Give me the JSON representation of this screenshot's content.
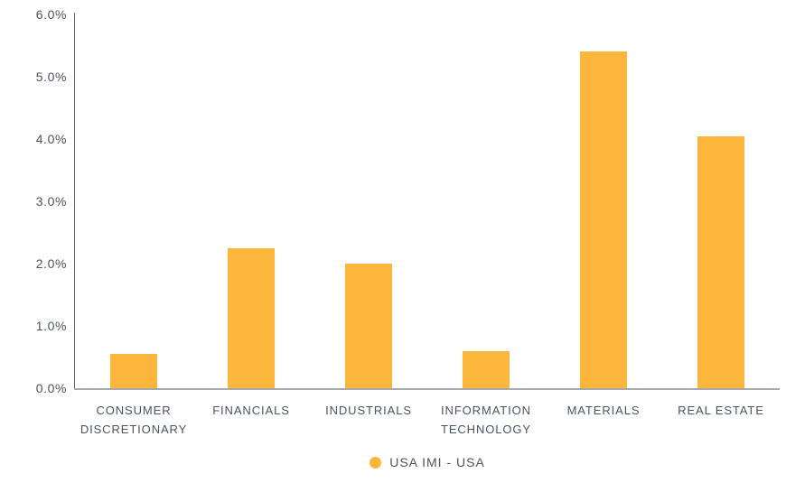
{
  "chart_data": {
    "type": "bar",
    "title": "",
    "categories": [
      "CONSUMER DISCRETIONARY",
      "FINANCIALS",
      "INDUSTRIALS",
      "INFORMATION TECHNOLOGY",
      "MATERIALS",
      "REAL ESTATE"
    ],
    "series": [
      {
        "name": "USA IMI - USA",
        "values": [
          0.55,
          2.25,
          2.0,
          0.6,
          5.4,
          4.05
        ]
      }
    ],
    "value_unit": "%",
    "xlabel": "",
    "ylabel": "",
    "ylim": [
      0.0,
      6.0
    ],
    "ytick_step": 1.0,
    "ytick_labels": [
      "0.0%",
      "1.0%",
      "2.0%",
      "3.0%",
      "4.0%",
      "5.0%",
      "6.0%"
    ],
    "grid": false,
    "legend_position": "bottom-center",
    "colors": {
      "bar": "#FCB63C",
      "text": "#4A5360",
      "y_axis_line": "#5B6470",
      "x_axis_line": "#A7A9AC",
      "background": "#FFFFFF"
    }
  },
  "legend": {
    "label": "USA IMI - USA",
    "marker": "circle-icon"
  }
}
